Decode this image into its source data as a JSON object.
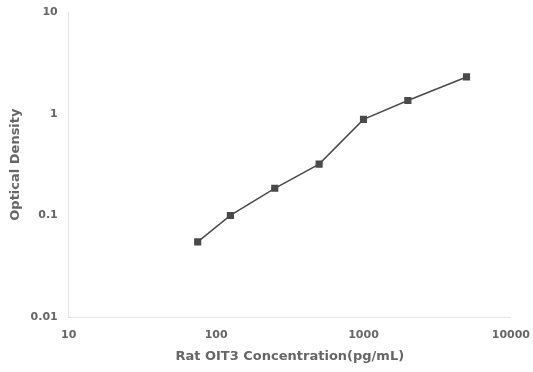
{
  "chart_data": {
    "type": "line",
    "x": [
      75,
      125,
      250,
      500,
      1000,
      2000,
      5000
    ],
    "values": [
      0.055,
      0.1,
      0.185,
      0.32,
      0.88,
      1.35,
      2.3
    ],
    "xlabel": "Rat OIT3 Concentration(pg/mL)",
    "ylabel": "Optical Density",
    "xlim": [
      10,
      10000
    ],
    "ylim": [
      0.01,
      10
    ],
    "xticks": [
      10,
      100,
      1000,
      10000
    ],
    "yticks": [
      0.01,
      0.1,
      1,
      10
    ],
    "log": true,
    "grid": false,
    "color": "#4a4a4a",
    "marker": "square",
    "line_style": "solid"
  }
}
